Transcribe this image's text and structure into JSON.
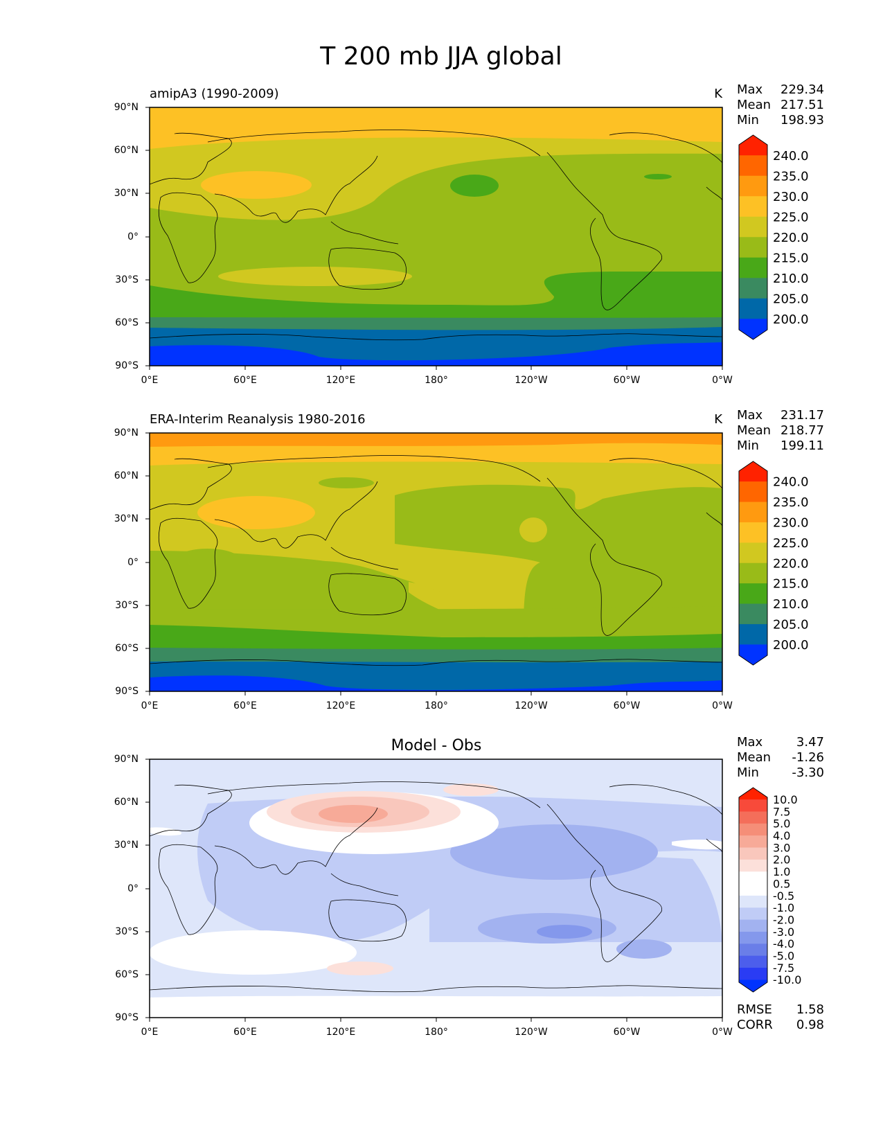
{
  "figure_title": "T 200 mb JJA global",
  "x_ticks": [
    "0°E",
    "60°E",
    "120°E",
    "180°",
    "120°W",
    "60°W",
    "0°W"
  ],
  "y_ticks": [
    "90°N",
    "60°N",
    "30°N",
    "0°",
    "30°S",
    "60°S",
    "90°S"
  ],
  "panels": [
    {
      "title_left": "amipA3 (1990-2009)",
      "title_center": "",
      "units": "K",
      "stats": [
        {
          "label": "Max",
          "value": "229.34"
        },
        {
          "label": "Mean",
          "value": "217.51"
        },
        {
          "label": "Min",
          "value": "198.93"
        }
      ],
      "colorbar": {
        "labels": [
          "240.0",
          "235.0",
          "230.0",
          "225.0",
          "220.0",
          "215.0",
          "210.0",
          "205.0",
          "200.0"
        ],
        "colors": [
          "#FF2200",
          "#FF6600",
          "#FF9A10",
          "#FDC125",
          "#D1C820",
          "#99BB18",
          "#49A818",
          "#3A8A60",
          "#0068A8",
          "#0033FF"
        ]
      }
    },
    {
      "title_left": "ERA-Interim Reanalysis 1980-2016",
      "title_center": "",
      "units": "K",
      "stats": [
        {
          "label": "Max",
          "value": "231.17"
        },
        {
          "label": "Mean",
          "value": "218.77"
        },
        {
          "label": "Min",
          "value": "199.11"
        }
      ],
      "colorbar": {
        "labels": [
          "240.0",
          "235.0",
          "230.0",
          "225.0",
          "220.0",
          "215.0",
          "210.0",
          "205.0",
          "200.0"
        ],
        "colors": [
          "#FF2200",
          "#FF6600",
          "#FF9A10",
          "#FDC125",
          "#D1C820",
          "#99BB18",
          "#49A818",
          "#3A8A60",
          "#0068A8",
          "#0033FF"
        ]
      }
    },
    {
      "title_left": "",
      "title_center": "Model - Obs",
      "units": "",
      "stats": [
        {
          "label": "Max",
          "value": "3.47"
        },
        {
          "label": "Mean",
          "value": "-1.26"
        },
        {
          "label": "Min",
          "value": "-3.30"
        }
      ],
      "colorbar": {
        "labels": [
          "10.0",
          "7.5",
          "5.0",
          "4.0",
          "3.0",
          "2.0",
          "1.0",
          "0.5",
          "-0.5",
          "-1.0",
          "-2.0",
          "-3.0",
          "-4.0",
          "-5.0",
          "-7.5",
          "-10.0"
        ],
        "colors": [
          "#FF2200",
          "#F84A3A",
          "#F46E5A",
          "#F58E78",
          "#F7AA98",
          "#F9C7BC",
          "#FCE0DA",
          "#FFFFFF",
          "#FFFFFF",
          "#DEE6FA",
          "#C0CCF6",
          "#A2B2F0",
          "#8498EC",
          "#6A7EE8",
          "#4C5EEC",
          "#2A3CF4",
          "#0033FF"
        ]
      },
      "footer_stats": [
        {
          "label": "RMSE",
          "value": "1.58"
        },
        {
          "label": "CORR",
          "value": "0.98"
        }
      ]
    }
  ]
}
